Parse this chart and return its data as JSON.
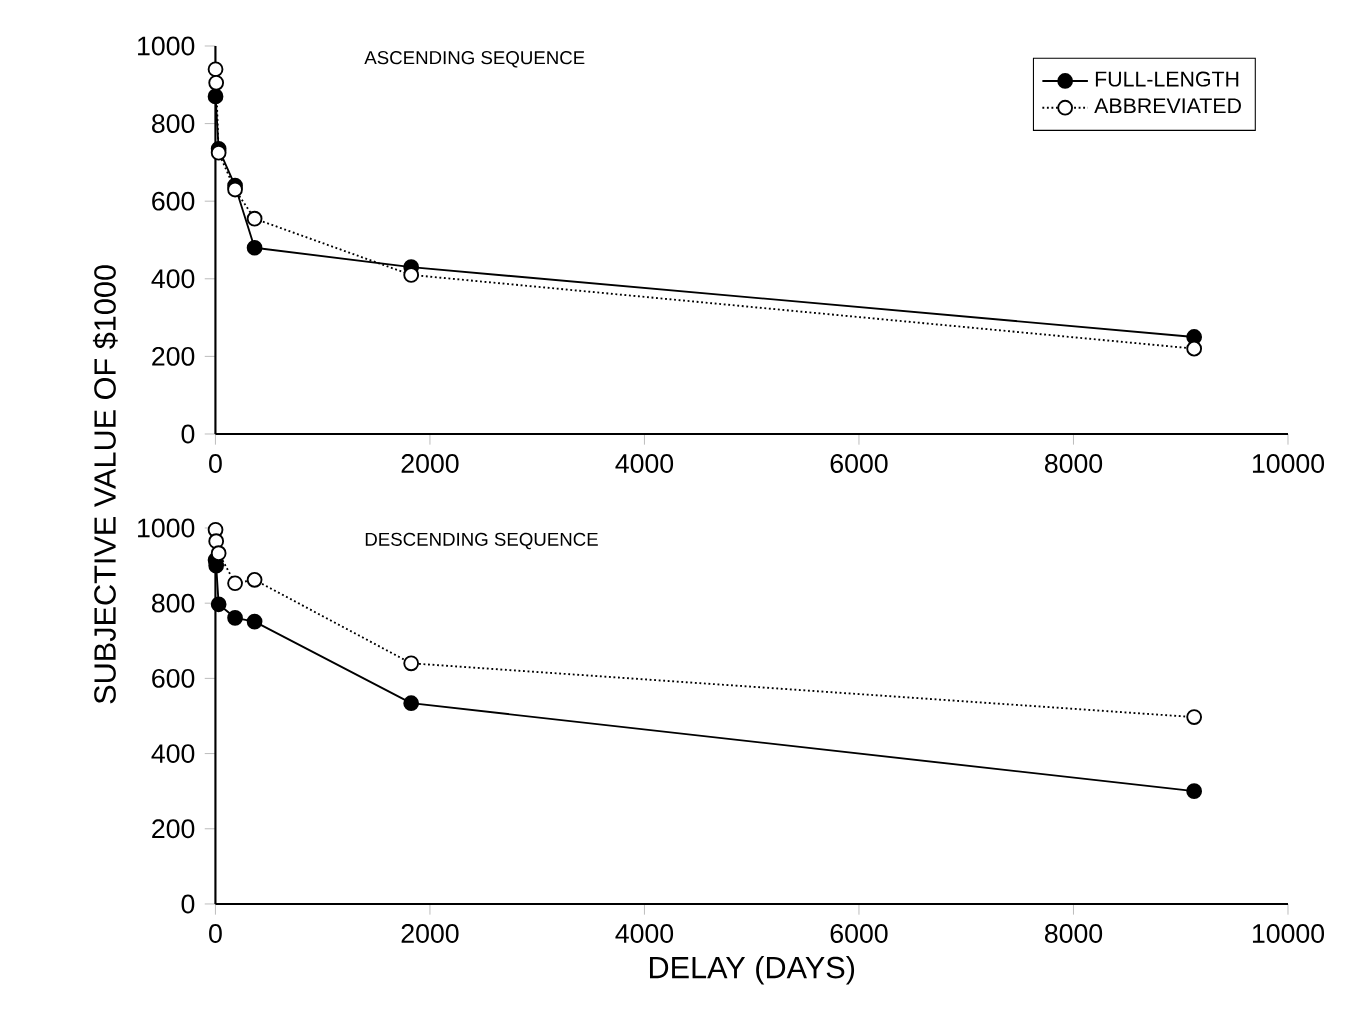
{
  "chart_data": [
    {
      "type": "line",
      "title": "ASCENDING SEQUENCE",
      "ylabel": "SUBJECTIVE VALUE OF $1000",
      "xlim": [
        0,
        10000
      ],
      "xticks": [
        0,
        2000,
        4000,
        6000,
        8000,
        10000
      ],
      "ylim": [
        0,
        1000
      ],
      "yticks": [
        0,
        200,
        400,
        600,
        800,
        1000
      ],
      "legend": "top right",
      "marker": "circle",
      "series": [
        {
          "name": "FULL-LENGTH",
          "color": "#000000",
          "line_style": "solid",
          "x": [
            1,
            30,
            183,
            365,
            1825,
            9125
          ],
          "values": [
            870,
            735,
            640,
            480,
            430,
            250
          ]
        },
        {
          "name": "ABBREVIATED",
          "color": "#000000",
          "line_style": "dotted",
          "x": [
            1,
            7,
            30,
            183,
            365,
            1825,
            9125
          ],
          "values": [
            940,
            905,
            725,
            630,
            555,
            410,
            220
          ]
        }
      ]
    },
    {
      "type": "line",
      "title": "DESCENDING SEQUENCE",
      "xlabel": "DELAY (DAYS)",
      "xlim": [
        0,
        10000
      ],
      "xticks": [
        0,
        2000,
        4000,
        6000,
        8000,
        10000
      ],
      "ylim": [
        0,
        1000
      ],
      "yticks": [
        0,
        200,
        400,
        600,
        800,
        1000
      ],
      "marker": "circle",
      "series": [
        {
          "color": "#000000",
          "line_style": "solid",
          "x": [
            1,
            7,
            30,
            183,
            365,
            1825,
            9125
          ],
          "values": [
            915,
            900,
            797,
            761,
            751,
            534,
            300
          ]
        },
        {
          "color": "#000000",
          "line_style": "dotted",
          "x": [
            1,
            7,
            30,
            183,
            365,
            1825,
            9125
          ],
          "values": [
            995,
            965,
            933,
            853,
            862,
            640,
            497
          ]
        }
      ]
    }
  ]
}
